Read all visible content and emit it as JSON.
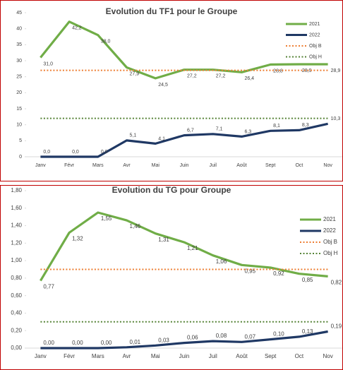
{
  "chart_data": [
    {
      "type": "line",
      "title": "Evolution du TF1 pour le Groupe",
      "categories": [
        "Janv",
        "Févr",
        "Mars",
        "Avr",
        "Mai",
        "Juin",
        "Juil",
        "Août",
        "Sept",
        "Oct",
        "Nov"
      ],
      "ylim": [
        0,
        45
      ],
      "yticks": [
        0,
        5,
        10,
        15,
        20,
        25,
        30,
        35,
        40,
        45
      ],
      "grid": false,
      "legend": "upper right",
      "series": [
        {
          "name": "2021",
          "color": "#70ad47",
          "dash": "solid",
          "values": [
            31.0,
            42.2,
            38.0,
            27.9,
            24.5,
            27.2,
            27.2,
            26.4,
            28.8,
            28.9,
            28.9
          ],
          "value_labels": [
            "31,0",
            "42,2",
            "38,0",
            "27,9",
            "24,5",
            "27,2",
            "27,2",
            "26,4",
            "28,8",
            "28,9",
            "28,9"
          ]
        },
        {
          "name": "2022",
          "color": "#1f3864",
          "dash": "solid",
          "values": [
            0.0,
            0.0,
            0.0,
            5.1,
            4.1,
            6.7,
            7.1,
            6.3,
            8.1,
            8.3,
            10.3
          ],
          "value_labels": [
            "0,0",
            "0,0",
            "0,0",
            "5,1",
            "4,1",
            "6,7",
            "7,1",
            "6,3",
            "8,1",
            "8,3",
            "10,3"
          ]
        },
        {
          "name": "Obj B",
          "color": "#ed7d31",
          "dash": "dotted",
          "values": [
            27,
            27,
            27,
            27,
            27,
            27,
            27,
            27,
            27,
            27,
            27
          ]
        },
        {
          "name": "Obj H",
          "color": "#548235",
          "dash": "dotted",
          "values": [
            12,
            12,
            12,
            12,
            12,
            12,
            12,
            12,
            12,
            12,
            12
          ]
        }
      ]
    },
    {
      "type": "line",
      "title": "Evolution du TG pour Groupe",
      "categories": [
        "Janv",
        "Févr",
        "Mars",
        "Avr",
        "Mai",
        "Juin",
        "Juil",
        "Août",
        "Sept",
        "Oct",
        "Nov"
      ],
      "ylim": [
        0,
        1.8
      ],
      "yticks": [
        {
          "value": 0,
          "label": "0,00"
        },
        {
          "value": 0.2,
          "label": "0,20"
        },
        {
          "value": 0.4,
          "label": "0,40"
        },
        {
          "value": 0.6,
          "label": "0,60"
        },
        {
          "value": 0.8,
          "label": "0,80"
        },
        {
          "value": 1.0,
          "label": "1,00"
        },
        {
          "value": 1.2,
          "label": "1,20"
        },
        {
          "value": 1.4,
          "label": "1,40"
        },
        {
          "value": 1.6,
          "label": "1,60"
        },
        {
          "value": 1.8,
          "label": "1,80"
        }
      ],
      "grid": false,
      "legend": "upper right",
      "series": [
        {
          "name": "2021",
          "color": "#70ad47",
          "dash": "solid",
          "values": [
            0.77,
            1.32,
            1.55,
            1.46,
            1.31,
            1.21,
            1.06,
            0.95,
            0.92,
            0.85,
            0.82
          ],
          "value_labels": [
            "0,77",
            "1,32",
            "1,55",
            "1,46",
            "1,31",
            "1,21",
            "1,06",
            "0,95",
            "0,92",
            "0,85",
            "0,82"
          ]
        },
        {
          "name": "2022",
          "color": "#1f3864",
          "dash": "solid",
          "values": [
            0.0,
            0.0,
            0.0,
            0.01,
            0.03,
            0.06,
            0.08,
            0.07,
            0.1,
            0.13,
            0.19
          ],
          "value_labels": [
            "0,00",
            "0,00",
            "0,00",
            "0,01",
            "0,03",
            "0,06",
            "0,08",
            "0,07",
            "0,10",
            "0,13",
            "0,19"
          ]
        },
        {
          "name": "Obj B",
          "color": "#ed7d31",
          "dash": "dotted",
          "values": [
            0.9,
            0.9,
            0.9,
            0.9,
            0.9,
            0.9,
            0.9,
            0.9,
            0.9,
            0.9,
            0.9
          ]
        },
        {
          "name": "Obj H",
          "color": "#548235",
          "dash": "dotted",
          "values": [
            0.3,
            0.3,
            0.3,
            0.3,
            0.3,
            0.3,
            0.3,
            0.3,
            0.3,
            0.3,
            0.3
          ]
        }
      ]
    }
  ]
}
